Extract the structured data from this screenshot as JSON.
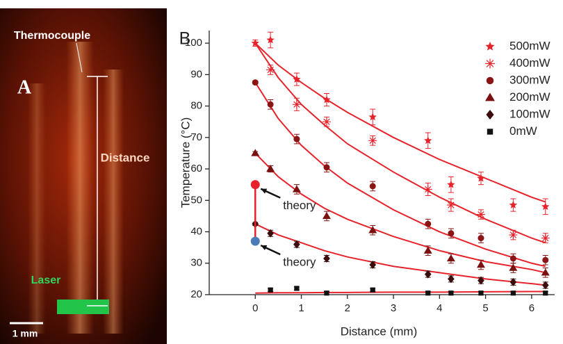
{
  "image_panel": {
    "label": "A",
    "thermocouple": "Thermocouple",
    "distance": "Distance",
    "laser": "Laser",
    "scale_bar": "1 mm"
  },
  "chart_data": {
    "type": "scatter",
    "panel_label": "B",
    "xlabel": "Distance (mm)",
    "ylabel": "Temperature (°C)",
    "xlim": [
      -1,
      6.5
    ],
    "ylim": [
      20,
      104
    ],
    "xticks": [
      0,
      1,
      2,
      3,
      4,
      5,
      6
    ],
    "yticks": [
      20,
      30,
      40,
      50,
      60,
      70,
      80,
      90,
      100
    ],
    "series": [
      {
        "name": "500mW",
        "marker": "star",
        "color": "#e8222a",
        "x": [
          0,
          0.33,
          0.9,
          1.55,
          2.55,
          3.75,
          4.25,
          4.9,
          5.6,
          6.3
        ],
        "values": [
          100,
          101,
          88.5,
          82,
          76.5,
          69,
          55,
          57,
          48.5,
          48
        ],
        "errors": [
          1,
          2.5,
          2,
          2,
          2.5,
          2.5,
          2.5,
          2,
          2,
          2.5
        ]
      },
      {
        "name": "400mW",
        "marker": "asterisk",
        "color": "#e8222a",
        "x": [
          0.33,
          0.9,
          1.55,
          2.55,
          3.75,
          4.25,
          4.9,
          5.6,
          6.3
        ],
        "values": [
          91.5,
          80.5,
          75,
          69,
          53.5,
          48.5,
          45.5,
          39,
          38
        ],
        "errors": [
          1.5,
          2,
          1.5,
          1.5,
          2,
          2,
          1.5,
          1.5,
          1.5
        ]
      },
      {
        "name": "300mW",
        "marker": "circle",
        "color": "#8b1414",
        "x": [
          0,
          0.33,
          0.9,
          1.55,
          2.55,
          3.75,
          4.25,
          4.9,
          5.6,
          6.3
        ],
        "values": [
          87.5,
          80.5,
          69.5,
          60.5,
          54.5,
          42.5,
          39.5,
          38,
          31.5,
          31
        ],
        "errors": [
          0.5,
          1.5,
          1.5,
          1.5,
          1.5,
          1.5,
          1.5,
          1.5,
          1.5,
          1.5
        ]
      },
      {
        "name": "200mW",
        "marker": "triangle",
        "color": "#7a1010",
        "x": [
          0,
          0.33,
          0.9,
          1.55,
          2.55,
          3.75,
          4.25,
          4.9,
          5.6,
          6.3
        ],
        "values": [
          65,
          60,
          53.5,
          45,
          40.5,
          34,
          31.5,
          29.5,
          28.5,
          27
        ],
        "errors": [
          0.5,
          1,
          1.5,
          1.5,
          1.5,
          1.5,
          1.5,
          1.5,
          1.5,
          1.5
        ]
      },
      {
        "name": "100mW",
        "marker": "diamond",
        "color": "#3a0c0c",
        "x": [
          0,
          0.33,
          0.9,
          1.55,
          2.55,
          3.75,
          4.25,
          4.9,
          5.6,
          6.3
        ],
        "values": [
          42.5,
          39.5,
          36,
          31.5,
          29.5,
          26.5,
          25,
          24.5,
          24,
          23
        ],
        "errors": [
          0.5,
          1,
          1,
          1,
          1,
          1,
          1,
          1,
          1,
          1
        ]
      },
      {
        "name": "0mW",
        "marker": "square",
        "color": "#111111",
        "x": [
          0.33,
          0.9,
          1.55,
          2.55,
          3.75,
          4.25,
          4.9,
          5.6,
          6.3
        ],
        "values": [
          21.5,
          22,
          20.5,
          21.5,
          20.5,
          20.5,
          20.5,
          20.5,
          20.5
        ],
        "errors": [
          0.5,
          0.5,
          0.5,
          0.5,
          0.5,
          0.5,
          0.5,
          0.5,
          0.5
        ]
      }
    ],
    "fits": {
      "color": "#e8222a",
      "x": [
        0,
        0.5,
        1,
        1.5,
        2,
        3,
        4,
        5,
        6,
        6.3
      ],
      "curves": [
        [
          100,
          93,
          87.5,
          82.5,
          78,
          70,
          63,
          57,
          51,
          49.5
        ],
        [
          100,
          89,
          80.5,
          74,
          68,
          59,
          51,
          44,
          38,
          36.5
        ],
        [
          87.5,
          76,
          67.5,
          61,
          55.5,
          47,
          40,
          34.5,
          30,
          29
        ],
        [
          65,
          57.5,
          52,
          47.5,
          44,
          38.5,
          34,
          30.5,
          28,
          27
        ],
        [
          42.5,
          39,
          36.5,
          34,
          32,
          29,
          27,
          25,
          23.5,
          23
        ],
        [
          20.5,
          20.6,
          20.6,
          20.7,
          20.7,
          20.8,
          20.8,
          20.9,
          21,
          21
        ]
      ]
    },
    "theory_points": [
      {
        "x": 0,
        "value": 55,
        "color": "#e8222a"
      },
      {
        "x": 0,
        "value": 37,
        "color": "#4a7ab8"
      }
    ],
    "annotations": [
      "theory",
      "theory"
    ]
  }
}
